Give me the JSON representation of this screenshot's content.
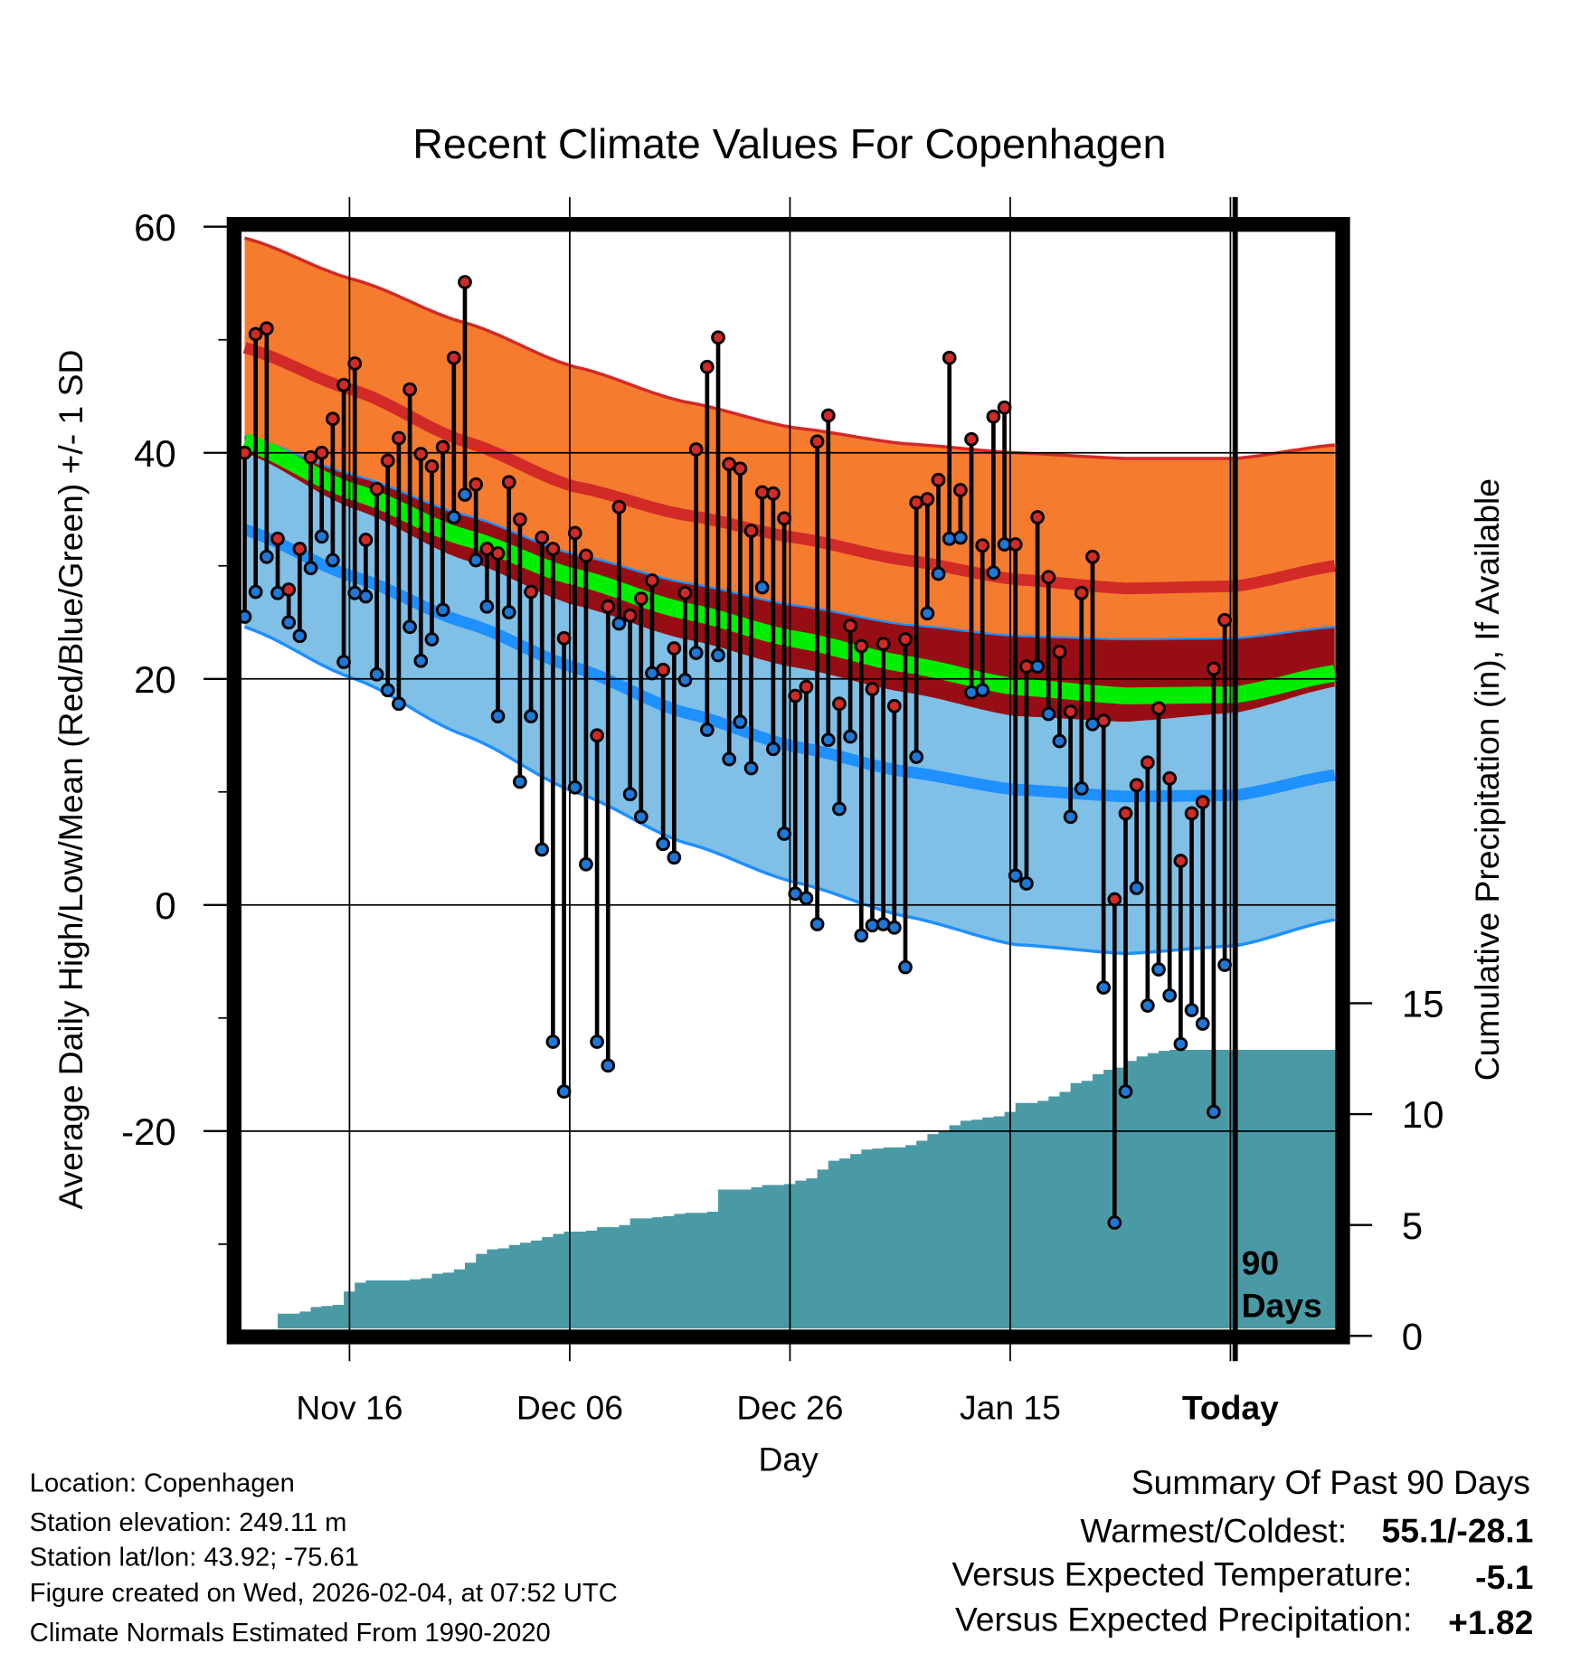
{
  "chart_data": {
    "type": "line",
    "title": "Recent Climate Values For Copenhagen",
    "xlabel": "Day",
    "ylabel": "Average Daily High/Low/Mean (Red/Blue/Green) +/- 1 SD",
    "y2label": "Cumulative Precipitation (in), If Available",
    "ylim": [
      -38,
      60
    ],
    "y2lim": [
      0,
      50
    ],
    "yticks": [
      "60",
      "40",
      "20",
      "0",
      "-20"
    ],
    "y2ticks": [
      "15",
      "10",
      "5",
      "0"
    ],
    "xticks": [
      "Nov 16",
      "Dec 06",
      "Dec 26",
      "Jan 15",
      "Today"
    ],
    "xtick_days": [
      10,
      30,
      50,
      70,
      90
    ],
    "today_label": [
      "90",
      "Days"
    ],
    "highs": [
      40,
      50.5,
      51,
      32.4,
      27.9,
      31.5,
      39.6,
      40,
      43,
      46,
      47.9,
      32.3,
      36.8,
      39.3,
      41.3,
      45.6,
      39.9,
      38.8,
      40.5,
      48.4,
      55.1,
      37.2,
      31.5,
      31.1,
      37.4,
      34.1,
      27.7,
      32.5,
      31.5,
      23.6,
      32.9,
      30.9,
      15,
      26.4,
      35.2,
      25.6,
      27.1,
      28.7,
      20.8,
      22.7,
      27.6,
      40.3,
      47.6,
      50.2,
      39,
      38.6,
      33.1,
      36.5,
      36.4,
      34.2,
      18.5,
      19.3,
      41,
      43.3,
      17.8,
      24.7,
      22.9,
      19.1,
      23.1,
      17.6,
      23.5,
      35.6,
      35.9,
      37.6,
      48.4,
      36.7,
      41.2,
      31.8,
      43.2,
      44,
      31.9,
      21.1,
      34.3,
      29,
      22.4,
      17.1,
      27.6,
      30.8,
      16.3,
      0.5,
      8.1,
      10.6,
      12.6,
      17.4,
      11.2,
      3.9,
      8.1,
      9.1,
      20.9,
      25.2
    ],
    "lows": [
      25.5,
      27.7,
      30.8,
      27.6,
      25,
      23.8,
      29.8,
      32.6,
      30.5,
      21.5,
      27.6,
      27.3,
      20.4,
      19,
      17.8,
      24.6,
      21.6,
      23.5,
      26.1,
      34.3,
      36.3,
      30.5,
      26.4,
      16.7,
      25.9,
      10.9,
      16.7,
      4.9,
      -12.1,
      -16.5,
      10.4,
      3.6,
      -12.1,
      -14.2,
      24.9,
      9.8,
      7.8,
      20.5,
      5.4,
      4.2,
      19.9,
      22.3,
      15.5,
      22.1,
      12.9,
      16.2,
      12.1,
      28.1,
      13.8,
      6.3,
      1,
      0.6,
      -1.7,
      14.6,
      8.5,
      14.9,
      -2.7,
      -1.8,
      -1.7,
      -2,
      -5.5,
      13.1,
      25.8,
      29.3,
      32.4,
      32.5,
      18.8,
      19,
      29.4,
      31.9,
      2.6,
      1.9,
      21.1,
      16.9,
      14.5,
      7.8,
      10.3,
      16,
      -7.3,
      -28.1,
      -16.5,
      1.5,
      -8.9,
      -5.7,
      -8,
      -12.3,
      -9.3,
      -10.5,
      -18.3,
      -5.3
    ],
    "precip_cumulative": [
      0,
      0,
      0.3,
      1.0,
      1.0,
      1.1,
      1.3,
      1.35,
      1.4,
      2.0,
      2.4,
      2.5,
      2.5,
      2.5,
      2.5,
      2.55,
      2.6,
      2.8,
      2.85,
      3.0,
      3.3,
      3.7,
      3.9,
      3.95,
      4.1,
      4.2,
      4.3,
      4.45,
      4.6,
      4.7,
      4.7,
      4.75,
      4.9,
      4.9,
      5.0,
      5.3,
      5.3,
      5.35,
      5.4,
      5.5,
      5.55,
      5.55,
      5.6,
      6.6,
      6.6,
      6.6,
      6.7,
      6.8,
      6.8,
      6.85,
      7.0,
      7.1,
      7.5,
      7.9,
      8.0,
      8.2,
      8.4,
      8.45,
      8.5,
      8.5,
      8.6,
      8.8,
      9.1,
      9.2,
      9.5,
      9.7,
      9.75,
      9.85,
      9.9,
      10.1,
      10.5,
      10.5,
      10.6,
      10.8,
      11.0,
      11.4,
      11.5,
      11.8,
      12.0,
      12.1,
      12.4,
      12.6,
      12.75,
      12.85,
      12.9,
      12.9,
      12.9,
      12.9,
      12.9,
      12.9
    ],
    "normals": {
      "days": [
        0,
        10,
        20,
        30,
        40,
        50,
        60,
        70,
        80,
        90,
        99
      ],
      "high_plus_sd": [
        59,
        55.3,
        51.5,
        47.6,
        44.5,
        42.2,
        40.8,
        40,
        39.5,
        39.5,
        40.7
      ],
      "high_mean": [
        49.3,
        45.5,
        41,
        37,
        34.5,
        32.5,
        30.5,
        28.8,
        28,
        28.2,
        30
      ],
      "low_plus_sd": [
        41.5,
        38,
        34.5,
        31,
        28.5,
        26.5,
        24.8,
        23.8,
        23.5,
        23.6,
        24.6
      ],
      "mean": [
        41,
        36.5,
        32.5,
        29,
        26,
        23.5,
        21.3,
        19.3,
        18.5,
        18.6,
        20.5
      ],
      "high_minus_sd": [
        40,
        35,
        30.5,
        26.5,
        23.5,
        21,
        18.8,
        16.7,
        16.2,
        17,
        19.3
      ],
      "low_mean": [
        33.2,
        29,
        25,
        21,
        17,
        14,
        11.8,
        10.2,
        9.6,
        9.7,
        11.5
      ],
      "low_minus_sd": [
        24.6,
        20,
        15,
        10,
        5.5,
        2,
        -1,
        -3.5,
        -4.3,
        -3.6,
        -1.3
      ]
    },
    "colors": {
      "orange": "#f57b2f",
      "red_line": "#d22a27",
      "dark_red": "#960e14",
      "green": "#00ee00",
      "light_blue": "#80bfe6",
      "blue_line": "#1e90ff",
      "precip": "#4a9aa6",
      "high_dot": "#d22a27",
      "low_dot": "#1e78d8"
    }
  },
  "footer": {
    "location": "Location: Copenhagen",
    "elevation": "Station elevation: 249.11 m",
    "latlon": "Station lat/lon: 43.92; -75.61",
    "created": "Figure created on Wed, 2026-02-04, at 07:52 UTC",
    "normals": "Climate Normals Estimated From 1990-2020"
  },
  "summary": {
    "title": "Summary Of Past 90 Days",
    "warm_cold_label": "Warmest/Coldest:",
    "warm_cold_value": "55.1/-28.1",
    "temp_label": "Versus Expected Temperature:",
    "temp_value": "-5.1",
    "precip_label": "Versus Expected Precipitation:",
    "precip_value": "+1.82",
    "temp_color": "#1e90ff",
    "precip_color": "#22dd22"
  }
}
